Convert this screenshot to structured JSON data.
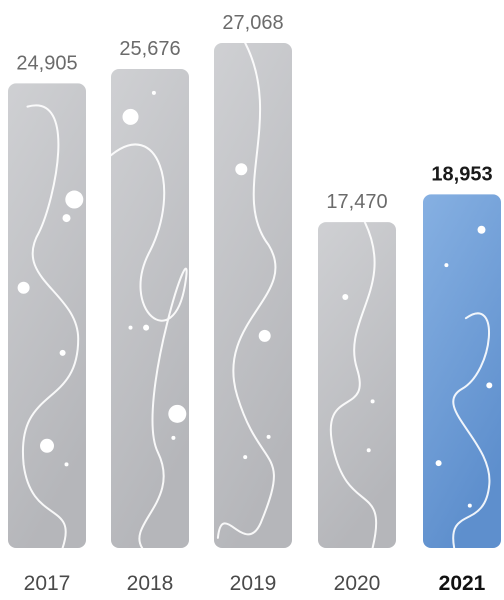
{
  "chart_data": {
    "type": "bar",
    "categories": [
      "2017",
      "2018",
      "2019",
      "2020",
      "2021"
    ],
    "values": [
      24905,
      25676,
      27068,
      17470,
      18953
    ],
    "data_labels": [
      "24,905",
      "25,676",
      "27,068",
      "17,470",
      "18,953"
    ],
    "highlight_index": 4,
    "ylim": [
      0,
      27068
    ],
    "grid": false,
    "colors": {
      "bar": "#c5c6ca",
      "bar_gradient_end": "#b3b4b8",
      "highlight": "#7ea8dc",
      "highlight_gradient_end": "#5f8fcd",
      "label": "#6b6b6b",
      "highlight_label": "#1a1a1a"
    }
  }
}
